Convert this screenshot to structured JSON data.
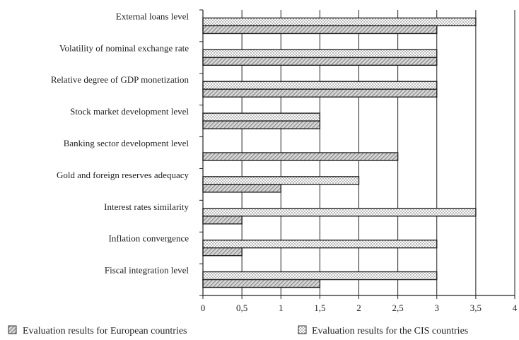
{
  "chart_data": {
    "type": "bar",
    "orientation": "horizontal",
    "categories": [
      "External loans level",
      "Volatility of nominal exchange rate",
      "Relative degree of GDP monetization",
      "Stock market development level",
      "Banking sector development level",
      "Gold and foreign reserves adequacy",
      "Interest rates similarity",
      "Inflation convergence",
      "Fiscal integration level"
    ],
    "series": [
      {
        "name": "Evaluation results for the CIS countries",
        "values": [
          3.5,
          3,
          3,
          1.5,
          0,
          2,
          3.5,
          3,
          3
        ]
      },
      {
        "name": "Evaluation results for European countries",
        "values": [
          3,
          3,
          3,
          1.5,
          2.5,
          1,
          0.5,
          0.5,
          1.5
        ]
      }
    ],
    "xlim": [
      0,
      4
    ],
    "xticks": [
      0,
      0.5,
      1,
      1.5,
      2,
      2.5,
      3,
      3.5,
      4
    ],
    "xtick_labels": [
      "0",
      "0,5",
      "1",
      "1,5",
      "2",
      "2,5",
      "3",
      "3,5",
      "4"
    ],
    "grid": "vertical",
    "legend_position": "bottom",
    "legend": [
      "Evaluation results for European countries",
      "Evaluation results for the CIS countries"
    ]
  }
}
